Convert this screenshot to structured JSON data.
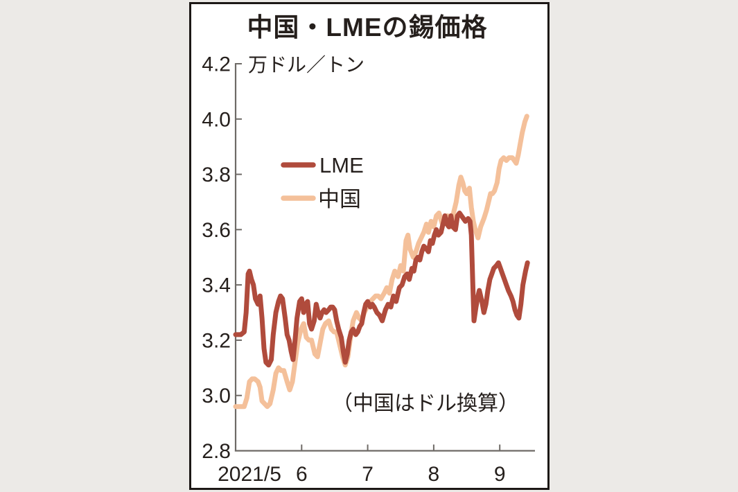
{
  "window": {
    "background_color": "#eceae7",
    "panel_color": "#ffffff",
    "panel_border_color": "#1c1816"
  },
  "chart_data": {
    "type": "line",
    "title": "中国・LMEの錫価格",
    "unit_label": "万ドル／トン",
    "note": "（中国はドル換算）",
    "xlabel": "",
    "ylabel": "万ドル／トン",
    "ylim": [
      2.8,
      4.2
    ],
    "x_range": [
      5.0,
      9.55
    ],
    "grid": false,
    "legend_position": "upper-left-inside",
    "axis_color": "#6e6a66",
    "y_ticks": [
      2.8,
      3.0,
      3.2,
      3.4,
      3.6,
      3.8,
      4.0,
      4.2
    ],
    "y_tick_labels": [
      "2.8",
      "3.0",
      "3.2",
      "3.4",
      "3.6",
      "3.8",
      "4.0",
      "4.2"
    ],
    "x_ticks": [
      6,
      7,
      8,
      9
    ],
    "x_tick_labels": [
      "2021/5",
      "6",
      "7",
      "8",
      "9"
    ],
    "x_tick_label_positions": [
      5.21,
      6,
      7,
      8,
      9
    ],
    "series": [
      {
        "name": "中国",
        "color": "#f4c09a",
        "points": [
          [
            5.0,
            2.96
          ],
          [
            5.04,
            2.96
          ],
          [
            5.08,
            2.96
          ],
          [
            5.13,
            2.96
          ],
          [
            5.17,
            2.99
          ],
          [
            5.21,
            3.05
          ],
          [
            5.25,
            3.06
          ],
          [
            5.29,
            3.06
          ],
          [
            5.34,
            3.05
          ],
          [
            5.37,
            3.03
          ],
          [
            5.4,
            2.98
          ],
          [
            5.44,
            2.97
          ],
          [
            5.48,
            2.96
          ],
          [
            5.52,
            2.97
          ],
          [
            5.57,
            3.02
          ],
          [
            5.61,
            3.08
          ],
          [
            5.65,
            3.1
          ],
          [
            5.69,
            3.09
          ],
          [
            5.73,
            3.09
          ],
          [
            5.78,
            3.05
          ],
          [
            5.82,
            3.02
          ],
          [
            5.86,
            3.05
          ],
          [
            5.9,
            3.12
          ],
          [
            5.94,
            3.19
          ],
          [
            5.99,
            3.24
          ],
          [
            6.03,
            3.26
          ],
          [
            6.07,
            3.21
          ],
          [
            6.11,
            3.2
          ],
          [
            6.15,
            3.2
          ],
          [
            6.2,
            3.15
          ],
          [
            6.24,
            3.14
          ],
          [
            6.28,
            3.19
          ],
          [
            6.32,
            3.24
          ],
          [
            6.36,
            3.26
          ],
          [
            6.41,
            3.27
          ],
          [
            6.45,
            3.24
          ],
          [
            6.49,
            3.23
          ],
          [
            6.53,
            3.23
          ],
          [
            6.57,
            3.19
          ],
          [
            6.62,
            3.14
          ],
          [
            6.66,
            3.11
          ],
          [
            6.7,
            3.14
          ],
          [
            6.74,
            3.21
          ],
          [
            6.78,
            3.27
          ],
          [
            6.83,
            3.3
          ],
          [
            6.87,
            3.28
          ],
          [
            6.91,
            3.27
          ],
          [
            6.95,
            3.3
          ],
          [
            6.99,
            3.32
          ],
          [
            7.04,
            3.34
          ],
          [
            7.08,
            3.35
          ],
          [
            7.12,
            3.36
          ],
          [
            7.16,
            3.36
          ],
          [
            7.2,
            3.35
          ],
          [
            7.25,
            3.37
          ],
          [
            7.29,
            3.39
          ],
          [
            7.33,
            3.37
          ],
          [
            7.37,
            3.42
          ],
          [
            7.41,
            3.45
          ],
          [
            7.46,
            3.43
          ],
          [
            7.5,
            3.47
          ],
          [
            7.54,
            3.45
          ],
          [
            7.58,
            3.56
          ],
          [
            7.61,
            3.58
          ],
          [
            7.64,
            3.53
          ],
          [
            7.69,
            3.5
          ],
          [
            7.73,
            3.52
          ],
          [
            7.77,
            3.55
          ],
          [
            7.81,
            3.57
          ],
          [
            7.85,
            3.59
          ],
          [
            7.89,
            3.62
          ],
          [
            7.92,
            3.59
          ],
          [
            7.96,
            3.63
          ],
          [
            8.0,
            3.61
          ],
          [
            8.04,
            3.65
          ],
          [
            8.08,
            3.66
          ],
          [
            8.13,
            3.62
          ],
          [
            8.17,
            3.64
          ],
          [
            8.21,
            3.65
          ],
          [
            8.25,
            3.61
          ],
          [
            8.29,
            3.65
          ],
          [
            8.34,
            3.7
          ],
          [
            8.38,
            3.76
          ],
          [
            8.41,
            3.79
          ],
          [
            8.44,
            3.77
          ],
          [
            8.47,
            3.74
          ],
          [
            8.5,
            3.73
          ],
          [
            8.54,
            3.75
          ],
          [
            8.57,
            3.68
          ],
          [
            8.6,
            3.63
          ],
          [
            8.63,
            3.6
          ],
          [
            8.67,
            3.57
          ],
          [
            8.71,
            3.61
          ],
          [
            8.76,
            3.64
          ],
          [
            8.8,
            3.67
          ],
          [
            8.83,
            3.7
          ],
          [
            8.86,
            3.73
          ],
          [
            8.89,
            3.73
          ],
          [
            8.92,
            3.74
          ],
          [
            8.96,
            3.77
          ],
          [
            8.99,
            3.82
          ],
          [
            9.02,
            3.85
          ],
          [
            9.06,
            3.86
          ],
          [
            9.1,
            3.85
          ],
          [
            9.14,
            3.86
          ],
          [
            9.19,
            3.86
          ],
          [
            9.22,
            3.85
          ],
          [
            9.25,
            3.84
          ],
          [
            9.28,
            3.87
          ],
          [
            9.31,
            3.91
          ],
          [
            9.34,
            3.95
          ],
          [
            9.38,
            3.99
          ],
          [
            9.41,
            4.01
          ]
        ]
      },
      {
        "name": "LME",
        "color": "#b04b3c",
        "points": [
          [
            5.0,
            3.22
          ],
          [
            5.04,
            3.22
          ],
          [
            5.08,
            3.22
          ],
          [
            5.13,
            3.23
          ],
          [
            5.16,
            3.3
          ],
          [
            5.19,
            3.44
          ],
          [
            5.21,
            3.45
          ],
          [
            5.24,
            3.42
          ],
          [
            5.27,
            3.4
          ],
          [
            5.3,
            3.35
          ],
          [
            5.34,
            3.33
          ],
          [
            5.37,
            3.36
          ],
          [
            5.4,
            3.28
          ],
          [
            5.43,
            3.17
          ],
          [
            5.46,
            3.12
          ],
          [
            5.5,
            3.11
          ],
          [
            5.54,
            3.13
          ],
          [
            5.57,
            3.22
          ],
          [
            5.61,
            3.3
          ],
          [
            5.65,
            3.34
          ],
          [
            5.68,
            3.36
          ],
          [
            5.71,
            3.35
          ],
          [
            5.75,
            3.28
          ],
          [
            5.78,
            3.22
          ],
          [
            5.81,
            3.2
          ],
          [
            5.84,
            3.16
          ],
          [
            5.87,
            3.13
          ],
          [
            5.9,
            3.2
          ],
          [
            5.93,
            3.28
          ],
          [
            5.97,
            3.34
          ],
          [
            6.0,
            3.35
          ],
          [
            6.03,
            3.3
          ],
          [
            6.06,
            3.33
          ],
          [
            6.09,
            3.34
          ],
          [
            6.12,
            3.26
          ],
          [
            6.15,
            3.24
          ],
          [
            6.19,
            3.27
          ],
          [
            6.22,
            3.33
          ],
          [
            6.25,
            3.3
          ],
          [
            6.28,
            3.28
          ],
          [
            6.31,
            3.3
          ],
          [
            6.34,
            3.31
          ],
          [
            6.37,
            3.3
          ],
          [
            6.41,
            3.31
          ],
          [
            6.44,
            3.32
          ],
          [
            6.47,
            3.32
          ],
          [
            6.5,
            3.31
          ],
          [
            6.53,
            3.27
          ],
          [
            6.56,
            3.24
          ],
          [
            6.6,
            3.21
          ],
          [
            6.63,
            3.16
          ],
          [
            6.66,
            3.12
          ],
          [
            6.69,
            3.15
          ],
          [
            6.72,
            3.2
          ],
          [
            6.75,
            3.23
          ],
          [
            6.78,
            3.24
          ],
          [
            6.82,
            3.22
          ],
          [
            6.85,
            3.23
          ],
          [
            6.88,
            3.25
          ],
          [
            6.91,
            3.26
          ],
          [
            6.94,
            3.3
          ],
          [
            6.97,
            3.33
          ],
          [
            7.0,
            3.34
          ],
          [
            7.04,
            3.32
          ],
          [
            7.07,
            3.33
          ],
          [
            7.1,
            3.32
          ],
          [
            7.14,
            3.3
          ],
          [
            7.18,
            3.29
          ],
          [
            7.22,
            3.27
          ],
          [
            7.27,
            3.31
          ],
          [
            7.31,
            3.33
          ],
          [
            7.35,
            3.32
          ],
          [
            7.39,
            3.36
          ],
          [
            7.43,
            3.34
          ],
          [
            7.48,
            3.39
          ],
          [
            7.52,
            3.4
          ],
          [
            7.56,
            3.43
          ],
          [
            7.6,
            3.44
          ],
          [
            7.63,
            3.42
          ],
          [
            7.67,
            3.46
          ],
          [
            7.7,
            3.45
          ],
          [
            7.73,
            3.49
          ],
          [
            7.76,
            3.5
          ],
          [
            7.79,
            3.49
          ],
          [
            7.82,
            3.52
          ],
          [
            7.85,
            3.54
          ],
          [
            7.89,
            3.53
          ],
          [
            7.92,
            3.52
          ],
          [
            7.95,
            3.56
          ],
          [
            7.98,
            3.55
          ],
          [
            8.01,
            3.58
          ],
          [
            8.04,
            3.6
          ],
          [
            8.07,
            3.58
          ],
          [
            8.11,
            3.59
          ],
          [
            8.14,
            3.62
          ],
          [
            8.17,
            3.65
          ],
          [
            8.2,
            3.62
          ],
          [
            8.23,
            3.61
          ],
          [
            8.26,
            3.65
          ],
          [
            8.29,
            3.61
          ],
          [
            8.33,
            3.6
          ],
          [
            8.36,
            3.65
          ],
          [
            8.39,
            3.66
          ],
          [
            8.42,
            3.65
          ],
          [
            8.45,
            3.64
          ],
          [
            8.48,
            3.63
          ],
          [
            8.52,
            3.64
          ],
          [
            8.55,
            3.63
          ],
          [
            8.57,
            3.58
          ],
          [
            8.59,
            3.42
          ],
          [
            8.61,
            3.27
          ],
          [
            8.64,
            3.32
          ],
          [
            8.67,
            3.36
          ],
          [
            8.69,
            3.38
          ],
          [
            8.73,
            3.34
          ],
          [
            8.76,
            3.3
          ],
          [
            8.79,
            3.33
          ],
          [
            8.82,
            3.38
          ],
          [
            8.85,
            3.42
          ],
          [
            8.88,
            3.44
          ],
          [
            8.91,
            3.46
          ],
          [
            8.95,
            3.47
          ],
          [
            8.98,
            3.48
          ],
          [
            9.01,
            3.46
          ],
          [
            9.04,
            3.44
          ],
          [
            9.07,
            3.42
          ],
          [
            9.1,
            3.4
          ],
          [
            9.13,
            3.38
          ],
          [
            9.17,
            3.36
          ],
          [
            9.2,
            3.34
          ],
          [
            9.23,
            3.31
          ],
          [
            9.26,
            3.29
          ],
          [
            9.29,
            3.28
          ],
          [
            9.32,
            3.33
          ],
          [
            9.35,
            3.4
          ],
          [
            9.39,
            3.45
          ],
          [
            9.42,
            3.48
          ]
        ]
      }
    ],
    "legend": [
      {
        "label": "LME",
        "color": "#b04b3c"
      },
      {
        "label": "中国",
        "color": "#f4c09a"
      }
    ]
  }
}
